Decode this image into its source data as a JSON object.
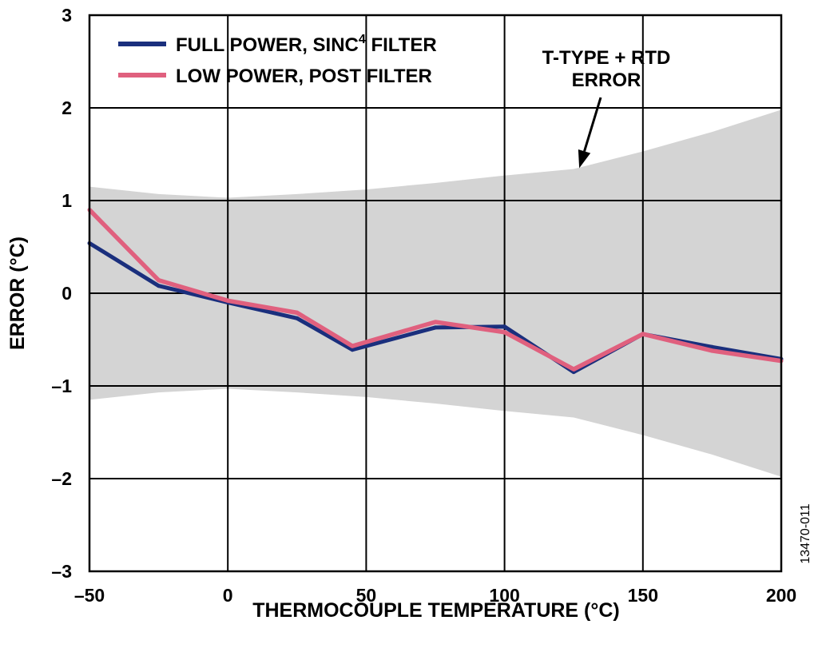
{
  "chart_data": {
    "type": "line",
    "xlabel": "THERMOCOUPLE TEMPERATURE (°C)",
    "ylabel": "ERROR (°C)",
    "xlim": [
      -50,
      200
    ],
    "ylim": [
      -3,
      3
    ],
    "x_ticks": [
      -50,
      0,
      50,
      100,
      150,
      200
    ],
    "y_ticks": [
      3,
      2,
      1,
      0,
      -1,
      -2,
      -3
    ],
    "x_tick_labels": [
      "–50",
      "0",
      "50",
      "100",
      "150",
      "200"
    ],
    "y_tick_labels": [
      "3",
      "2",
      "1",
      "0",
      "–1",
      "–2",
      "–3"
    ],
    "grid": true,
    "legend_position": "top-left",
    "series": [
      {
        "name": "FULL POWER, SINC4 FILTER",
        "legend_main": "FULL POWER, SINC",
        "legend_sup": "4",
        "legend_tail": " FILTER",
        "color": "#1a2f7d",
        "x": [
          -50,
          -25,
          0,
          25,
          45,
          75,
          100,
          125,
          150,
          175,
          200
        ],
        "y": [
          0.54,
          0.08,
          -0.1,
          -0.27,
          -0.61,
          -0.37,
          -0.36,
          -0.85,
          -0.44,
          -0.58,
          -0.71
        ]
      },
      {
        "name": "LOW POWER, POST FILTER",
        "legend_main": "LOW POWER, POST FILTER",
        "color": "#e0607e",
        "x": [
          -50,
          -25,
          0,
          25,
          45,
          75,
          100,
          125,
          150,
          175,
          200
        ],
        "y": [
          0.9,
          0.14,
          -0.08,
          -0.21,
          -0.57,
          -0.31,
          -0.42,
          -0.82,
          -0.44,
          -0.62,
          -0.73
        ]
      }
    ],
    "error_band": {
      "name": "T-TYPE + RTD ERROR",
      "color": "#d4d4d4",
      "x": [
        -50,
        -25,
        0,
        25,
        50,
        75,
        100,
        125,
        150,
        175,
        200
      ],
      "upper": [
        1.15,
        1.07,
        1.03,
        1.07,
        1.12,
        1.19,
        1.27,
        1.34,
        1.53,
        1.74,
        1.98
      ],
      "lower": [
        -1.15,
        -1.07,
        -1.03,
        -1.07,
        -1.12,
        -1.19,
        -1.27,
        -1.34,
        -1.53,
        -1.74,
        -1.98
      ]
    },
    "annotation": {
      "line1": "T-TYPE + RTD",
      "line2": "ERROR",
      "target_x": 127,
      "target_y": 1.35
    },
    "figure_id": "13470-011"
  }
}
